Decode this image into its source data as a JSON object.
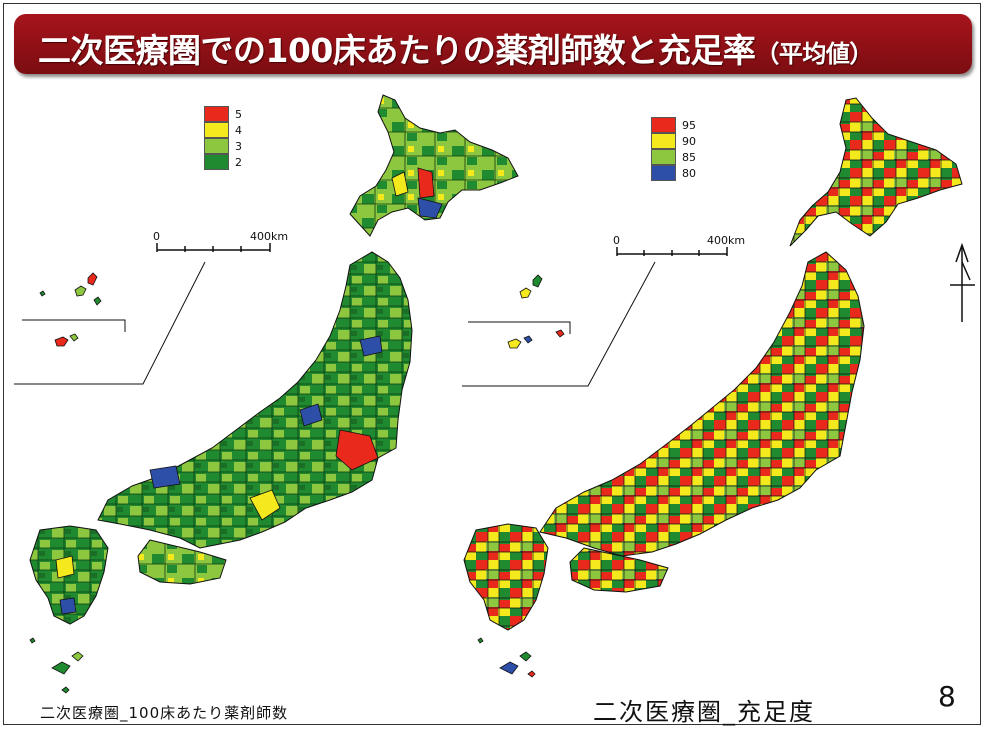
{
  "header": {
    "title_main": "二次医療圏での100床あたりの薬剤師数と充足率",
    "title_sub": "（平均値）"
  },
  "left_map": {
    "caption": "二次医療圏_100床あたり薬剤師数",
    "legend": [
      {
        "label": "5",
        "color": "#e8291c"
      },
      {
        "label": "4",
        "color": "#f3e91c"
      },
      {
        "label": "3",
        "color": "#8dc63f"
      },
      {
        "label": "2",
        "color": "#1f8a2f"
      }
    ],
    "scale": {
      "start": "0",
      "end": "400km"
    }
  },
  "right_map": {
    "caption": "二次医療圏_充足度",
    "legend": [
      {
        "label": "95",
        "color": "#e8291c"
      },
      {
        "label": "90",
        "color": "#f3e91c"
      },
      {
        "label": "85",
        "color": "#8dc63f"
      },
      {
        "label": "80",
        "color": "#2e4fa8"
      }
    ],
    "scale": {
      "start": "0",
      "end": "400km"
    }
  },
  "page_number": "8"
}
